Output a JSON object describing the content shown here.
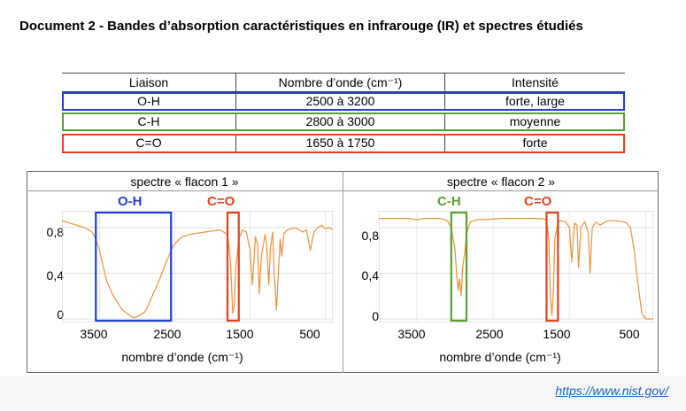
{
  "document": {
    "title": "Document 2 - Bandes d’absorption caractéristiques en infrarouge (IR) et spectres étudiés",
    "source_link": "https://www.nist.gov/"
  },
  "table": {
    "headers": [
      "Liaison",
      "Nombre d’onde (cm⁻¹)",
      "Intensité"
    ],
    "rows": [
      {
        "bond": "O-H",
        "wavenumber": "2500 à 3200",
        "intensity": "forte, large",
        "color": "#1f3fd6"
      },
      {
        "bond": "C-H",
        "wavenumber": "2800 à 3000",
        "intensity": "moyenne",
        "color": "#5aa02c"
      },
      {
        "bond": "C=O",
        "wavenumber": "1650 à 1750",
        "intensity": "forte",
        "color": "#e2421c"
      }
    ]
  },
  "spectra": {
    "panel1": {
      "title": "spectre « flacon 1 »",
      "mark1": "O-H",
      "mark2": "C=O"
    },
    "panel2": {
      "title": "spectre « flacon 2 »",
      "mark1": "C-H",
      "mark2": "C=O"
    },
    "y_ticks": [
      "0,8",
      "0,4",
      "0"
    ],
    "x_ticks": [
      "3500",
      "2500",
      "1500",
      "500"
    ],
    "xlabel": "nombre d’onde (cm⁻¹)",
    "trace_color": "#f0903c"
  },
  "chart_data": [
    {
      "type": "line",
      "title": "spectre « flacon 1 »",
      "xlabel": "nombre d’onde (cm⁻¹)",
      "ylabel": "",
      "xlim": [
        4000,
        400
      ],
      "ylim": [
        0,
        0.9
      ],
      "x_ticks": [
        3500,
        2500,
        1500,
        500
      ],
      "y_ticks": [
        0,
        0.4,
        0.8
      ],
      "highlighted_bands": [
        {
          "label": "O-H",
          "from": 3550,
          "to": 2550,
          "color": "#1f3fd6"
        },
        {
          "label": "C=O",
          "from": 1800,
          "to": 1650,
          "color": "#e2421c"
        }
      ],
      "series": [
        {
          "x": [
            4000,
            3900,
            3800,
            3700,
            3600,
            3550,
            3500,
            3450,
            3400,
            3300,
            3200,
            3100,
            3050,
            3000,
            2950,
            2900,
            2850,
            2800,
            2700,
            2600,
            2550,
            2500,
            2400,
            2300,
            2200,
            2100,
            2000,
            1900,
            1800,
            1760,
            1730,
            1710,
            1690,
            1650,
            1600,
            1550,
            1500,
            1470,
            1450,
            1430,
            1400,
            1380,
            1350,
            1300,
            1280,
            1250,
            1230,
            1200,
            1180,
            1150,
            1120,
            1100,
            1080,
            1050,
            1000,
            950,
            900,
            850,
            800,
            750,
            700,
            650,
            600,
            550,
            500,
            450,
            400
          ],
          "y": [
            0.86,
            0.84,
            0.82,
            0.8,
            0.76,
            0.7,
            0.6,
            0.45,
            0.32,
            0.18,
            0.08,
            0.03,
            0.01,
            0.02,
            0.04,
            0.06,
            0.12,
            0.2,
            0.35,
            0.52,
            0.6,
            0.66,
            0.72,
            0.74,
            0.75,
            0.76,
            0.77,
            0.78,
            0.74,
            0.5,
            0.05,
            0.12,
            0.45,
            0.7,
            0.78,
            0.76,
            0.6,
            0.3,
            0.5,
            0.72,
            0.65,
            0.22,
            0.55,
            0.74,
            0.65,
            0.3,
            0.62,
            0.76,
            0.4,
            0.08,
            0.45,
            0.7,
            0.55,
            0.75,
            0.78,
            0.79,
            0.8,
            0.78,
            0.76,
            0.78,
            0.6,
            0.76,
            0.8,
            0.82,
            0.79,
            0.8,
            0.78
          ]
        }
      ]
    },
    {
      "type": "line",
      "title": "spectre « flacon 2 »",
      "xlabel": "nombre d’onde (cm⁻¹)",
      "ylabel": "",
      "xlim": [
        4000,
        400
      ],
      "ylim": [
        0,
        0.9
      ],
      "x_ticks": [
        3500,
        2500,
        1500,
        500
      ],
      "y_ticks": [
        0,
        0.4,
        0.8
      ],
      "highlighted_bands": [
        {
          "label": "C-H",
          "from": 3050,
          "to": 2850,
          "color": "#5aa02c"
        },
        {
          "label": "C=O",
          "from": 1800,
          "to": 1650,
          "color": "#e2421c"
        }
      ],
      "series": [
        {
          "x": [
            4000,
            3800,
            3600,
            3500,
            3400,
            3300,
            3200,
            3100,
            3050,
            3000,
            2980,
            2960,
            2940,
            2920,
            2900,
            2870,
            2850,
            2800,
            2700,
            2600,
            2400,
            2200,
            2000,
            1900,
            1800,
            1770,
            1750,
            1730,
            1710,
            1690,
            1650,
            1600,
            1550,
            1500,
            1470,
            1450,
            1430,
            1400,
            1380,
            1350,
            1300,
            1250,
            1230,
            1200,
            1150,
            1100,
            1050,
            1000,
            900,
            800,
            750,
            700,
            650,
            600,
            550,
            500,
            450,
            400
          ],
          "y": [
            0.88,
            0.88,
            0.88,
            0.87,
            0.88,
            0.88,
            0.88,
            0.86,
            0.8,
            0.6,
            0.4,
            0.25,
            0.35,
            0.2,
            0.45,
            0.6,
            0.75,
            0.85,
            0.87,
            0.87,
            0.88,
            0.88,
            0.88,
            0.88,
            0.87,
            0.7,
            0.2,
            0.03,
            0.25,
            0.7,
            0.85,
            0.86,
            0.85,
            0.8,
            0.5,
            0.7,
            0.84,
            0.82,
            0.45,
            0.8,
            0.85,
            0.75,
            0.4,
            0.8,
            0.85,
            0.82,
            0.84,
            0.86,
            0.86,
            0.85,
            0.84,
            0.8,
            0.6,
            0.3,
            0.05,
            0.0,
            0.0,
            0.0
          ]
        }
      ]
    }
  ]
}
